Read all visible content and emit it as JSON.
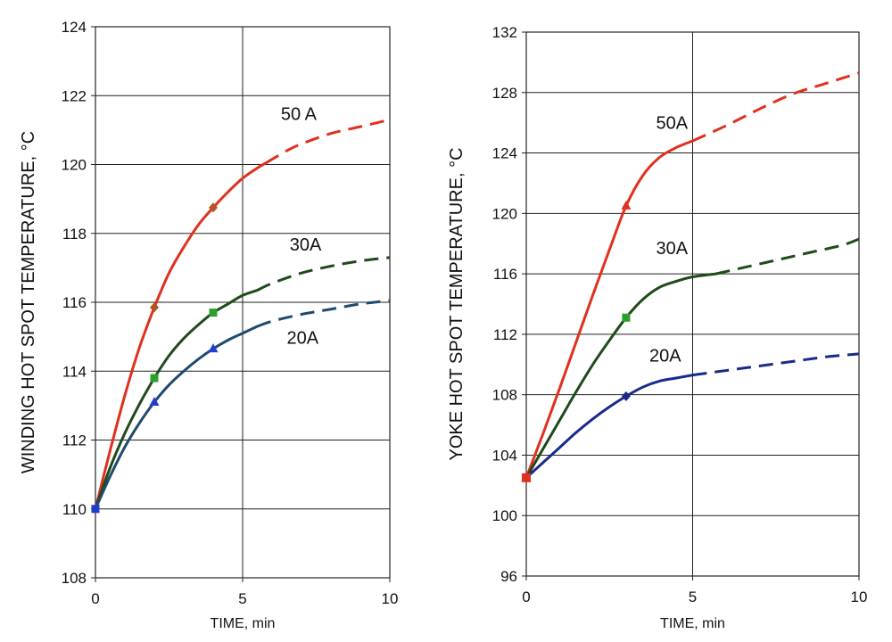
{
  "chart_data": [
    {
      "type": "line",
      "xlabel": "TIME, min",
      "ylabel": "WINDING HOT SPOT TEMPERATURE,",
      "ylabel_unit": "°C",
      "xlim": [
        0,
        10
      ],
      "ylim": [
        108,
        124
      ],
      "xticks": [
        0,
        5,
        10
      ],
      "yticks": [
        108,
        110,
        112,
        114,
        116,
        118,
        120,
        122,
        124
      ],
      "grid": true,
      "series": [
        {
          "name": "50 A",
          "color": "#e0301e",
          "marker": "diamond",
          "marker_color": "#b5541e",
          "markers": [
            [
              2,
              115.85
            ],
            [
              4,
              118.75
            ]
          ],
          "solid": [
            [
              0,
              110
            ],
            [
              0.5,
              111.7
            ],
            [
              1,
              113.3
            ],
            [
              1.5,
              114.7
            ],
            [
              2,
              115.85
            ],
            [
              2.5,
              116.85
            ],
            [
              3,
              117.6
            ],
            [
              3.5,
              118.25
            ],
            [
              4,
              118.75
            ],
            [
              4.5,
              119.2
            ],
            [
              5,
              119.6
            ],
            [
              5.5,
              119.9
            ],
            [
              5.8,
              120.05
            ]
          ],
          "dashed": [
            [
              5.8,
              120.05
            ],
            [
              6.5,
              120.4
            ],
            [
              7,
              120.6
            ],
            [
              8,
              120.9
            ],
            [
              9,
              121.1
            ],
            [
              10,
              121.3
            ]
          ]
        },
        {
          "name": "30A",
          "color": "#1f4a1a",
          "marker": "square",
          "marker_color": "#2aa02a",
          "markers": [
            [
              2,
              113.8
            ],
            [
              4,
              115.7
            ]
          ],
          "solid": [
            [
              0,
              110
            ],
            [
              0.5,
              111.2
            ],
            [
              1,
              112.2
            ],
            [
              1.5,
              113.05
            ],
            [
              2,
              113.8
            ],
            [
              2.5,
              114.45
            ],
            [
              3,
              114.95
            ],
            [
              3.5,
              115.35
            ],
            [
              4,
              115.7
            ],
            [
              4.5,
              115.95
            ],
            [
              5,
              116.2
            ],
            [
              5.5,
              116.35
            ]
          ],
          "dashed": [
            [
              5.5,
              116.35
            ],
            [
              6,
              116.55
            ],
            [
              7,
              116.85
            ],
            [
              8,
              117.05
            ],
            [
              9,
              117.2
            ],
            [
              10,
              117.3
            ]
          ]
        },
        {
          "name": "20A",
          "color": "#1f4a6e",
          "marker": "triangle",
          "marker_color": "#1f3ecf",
          "markers": [
            [
              2,
              113.1
            ],
            [
              4,
              114.65
            ]
          ],
          "solid": [
            [
              0,
              110
            ],
            [
              0.5,
              110.95
            ],
            [
              1,
              111.8
            ],
            [
              1.5,
              112.5
            ],
            [
              2,
              113.1
            ],
            [
              2.5,
              113.6
            ],
            [
              3,
              114.0
            ],
            [
              3.5,
              114.35
            ],
            [
              4,
              114.65
            ],
            [
              4.5,
              114.9
            ],
            [
              5,
              115.1
            ],
            [
              5.5,
              115.3
            ]
          ],
          "dashed": [
            [
              5.5,
              115.3
            ],
            [
              6,
              115.45
            ],
            [
              7,
              115.65
            ],
            [
              8,
              115.8
            ],
            [
              9,
              115.95
            ],
            [
              10,
              116.05
            ]
          ]
        }
      ],
      "label_positions": [
        [
          6.3,
          121.3
        ],
        [
          6.6,
          117.5
        ],
        [
          6.5,
          114.8
        ]
      ]
    },
    {
      "type": "line",
      "xlabel": "TIME, min",
      "ylabel": "YOKE HOT SPOT TEMPERATURE,",
      "ylabel_unit": "°C",
      "xlim": [
        0,
        10
      ],
      "ylim": [
        96,
        132
      ],
      "xticks": [
        0,
        5,
        10
      ],
      "yticks": [
        96,
        100,
        104,
        108,
        112,
        116,
        120,
        124,
        128,
        132
      ],
      "grid": true,
      "series": [
        {
          "name": "50A",
          "color": "#e0301e",
          "marker": "triangle",
          "marker_color": "#e0301e",
          "markers": [
            [
              0,
              102.5
            ],
            [
              3,
              120.5
            ]
          ],
          "solid": [
            [
              0,
              102.5
            ],
            [
              0.5,
              105.4
            ],
            [
              1,
              108.4
            ],
            [
              1.5,
              111.5
            ],
            [
              2,
              114.6
            ],
            [
              2.5,
              117.6
            ],
            [
              3,
              120.5
            ],
            [
              3.5,
              122.5
            ],
            [
              4,
              123.7
            ],
            [
              4.5,
              124.35
            ],
            [
              5,
              124.8
            ]
          ],
          "dashed": [
            [
              5,
              124.8
            ],
            [
              6,
              125.8
            ],
            [
              7,
              126.9
            ],
            [
              8,
              127.9
            ],
            [
              9,
              128.6
            ],
            [
              10,
              129.3
            ]
          ]
        },
        {
          "name": "30A",
          "color": "#1f4a1a",
          "marker": "square",
          "marker_color": "#2aa02a",
          "markers": [
            [
              3,
              113.1
            ]
          ],
          "solid": [
            [
              0,
              102.5
            ],
            [
              0.5,
              104.4
            ],
            [
              1,
              106.3
            ],
            [
              1.5,
              108.2
            ],
            [
              2,
              110.0
            ],
            [
              2.5,
              111.6
            ],
            [
              3,
              113.1
            ],
            [
              3.5,
              114.3
            ],
            [
              4,
              115.1
            ],
            [
              4.5,
              115.5
            ],
            [
              5,
              115.8
            ],
            [
              5.7,
              116.0
            ]
          ],
          "dashed": [
            [
              5.7,
              116.0
            ],
            [
              6.5,
              116.4
            ],
            [
              7.5,
              116.9
            ],
            [
              8.5,
              117.4
            ],
            [
              9.5,
              117.9
            ],
            [
              10,
              118.3
            ]
          ]
        },
        {
          "name": "20A",
          "color": "#1a2a8c",
          "marker": "diamond",
          "marker_color": "#1a2a8c",
          "markers": [
            [
              3,
              107.9
            ]
          ],
          "solid": [
            [
              0,
              102.5
            ],
            [
              0.5,
              103.5
            ],
            [
              1,
              104.5
            ],
            [
              1.5,
              105.5
            ],
            [
              2,
              106.4
            ],
            [
              2.5,
              107.2
            ],
            [
              3,
              107.9
            ],
            [
              3.5,
              108.5
            ],
            [
              4,
              108.9
            ],
            [
              4.5,
              109.1
            ],
            [
              5,
              109.3
            ]
          ],
          "dashed": [
            [
              5,
              109.3
            ],
            [
              6,
              109.6
            ],
            [
              7,
              109.9
            ],
            [
              8,
              110.2
            ],
            [
              9,
              110.5
            ],
            [
              10,
              110.7
            ]
          ]
        }
      ],
      "start_marker": {
        "x": 0,
        "y": 102.5,
        "color": "#e0301e"
      },
      "label_positions": [
        [
          3.9,
          125.6
        ],
        [
          3.9,
          117.3
        ],
        [
          3.7,
          110.2
        ]
      ]
    }
  ]
}
